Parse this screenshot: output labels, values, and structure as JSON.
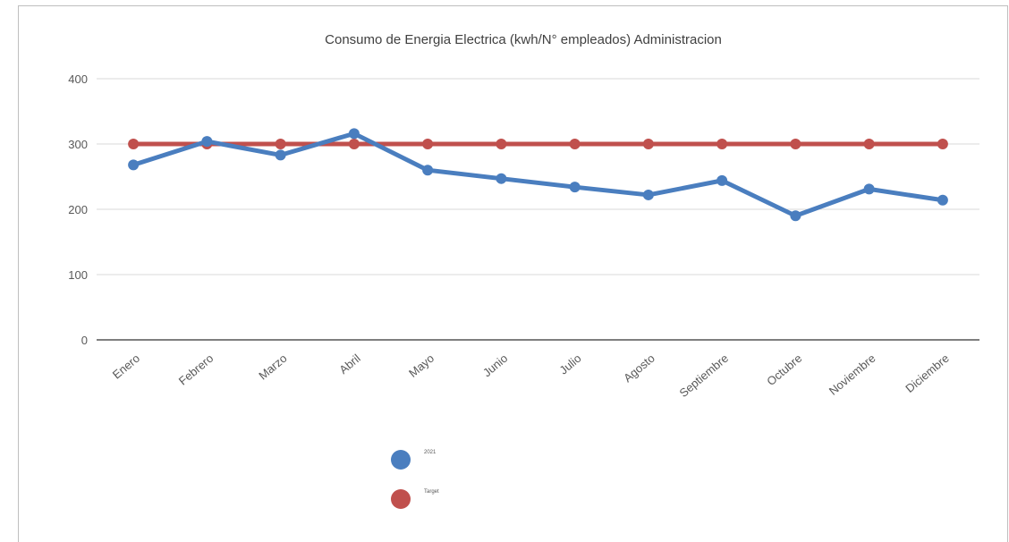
{
  "chart_data": {
    "type": "line",
    "title": "Consumo de Energia Electrica (kwh/N° empleados) Administracion",
    "categories": [
      "Enero",
      "Febrero",
      "Marzo",
      "Abril",
      "Mayo",
      "Junio",
      "Julio",
      "Agosto",
      "Septiembre",
      "Octubre",
      "Noviembre",
      "Diciembre"
    ],
    "series": [
      {
        "name": "2021",
        "color": "#4a7ebf",
        "values": [
          268,
          304,
          283,
          316,
          260,
          247,
          234,
          222,
          244,
          190,
          231,
          214
        ]
      },
      {
        "name": "Target",
        "color": "#c0504d",
        "values": [
          300,
          300,
          300,
          300,
          300,
          300,
          300,
          300,
          300,
          300,
          300,
          300
        ]
      }
    ],
    "ylim": [
      0,
      400
    ],
    "yticks": [
      0,
      100,
      200,
      300,
      400
    ],
    "grid": true
  }
}
